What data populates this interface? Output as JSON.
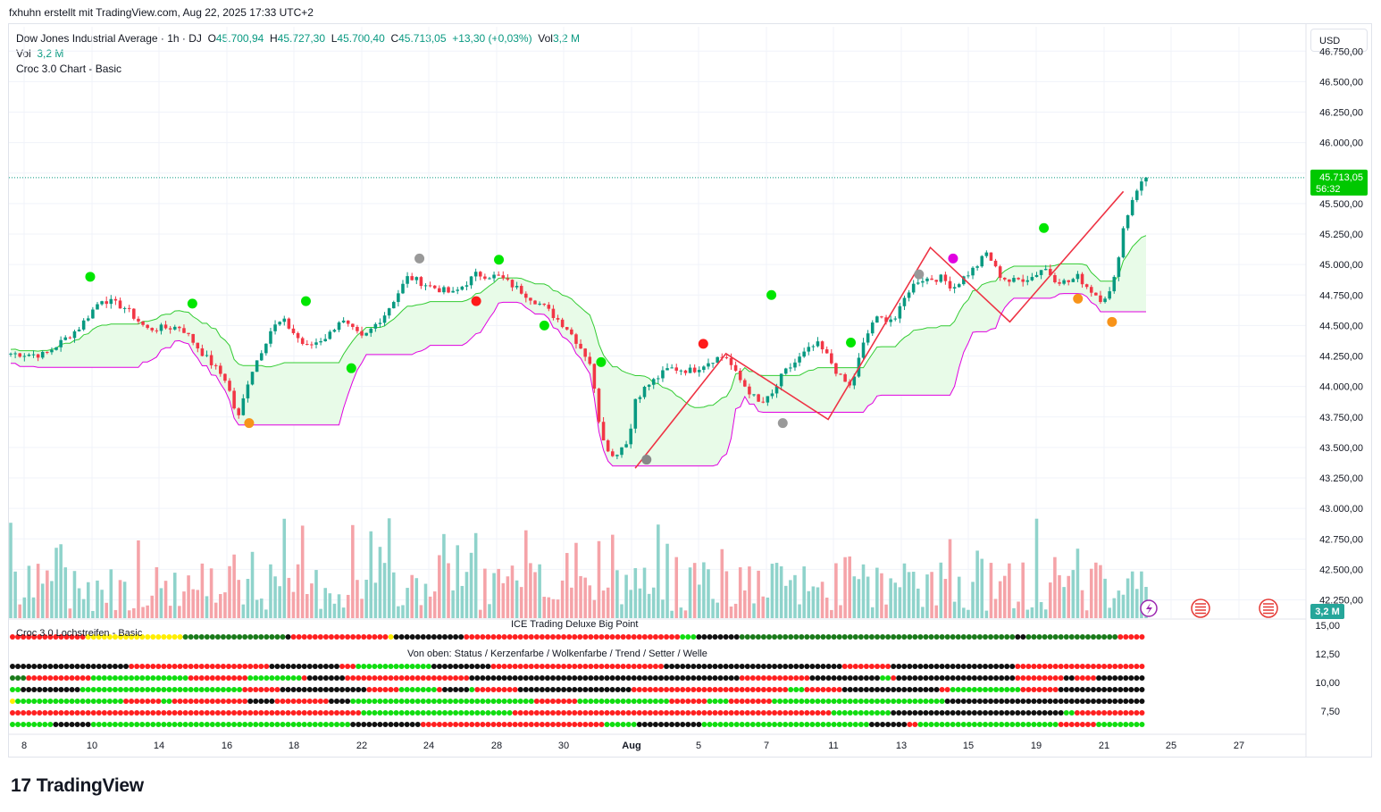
{
  "header": {
    "attribution": "fxhuhn erstellt mit TradingView.com, Aug 22, 2025 17:33 UTC+2"
  },
  "legend": {
    "symbol": "Dow Jones Industrial Average · 1h · DJ",
    "open_label": "O",
    "open": "45.700,94",
    "high_label": "H",
    "high": "45.727,30",
    "low_label": "L",
    "low": "45.700,40",
    "close_label": "C",
    "close": "45.713,05",
    "change": "+13,30 (+0,03%)",
    "vol_label": "Vol",
    "vol": "3,2 M",
    "line2_label": "Vol",
    "line2_value": "3,2 M",
    "line3": "Croc 3.0 Chart - Basic"
  },
  "currency_button": "USD",
  "price_label": {
    "value": "45.713,05",
    "countdown": "56:32"
  },
  "volume_badge": "3,2 M",
  "indicator1": {
    "title": "ICE Trading Deluxe Big Point",
    "sub": "Croc 3.0 Lochstreifen - Basic"
  },
  "indicator2": {
    "title": "Von oben: Status / Kerzenfarbe / Wolkenfarbe / Trend / Setter / Welle"
  },
  "footer": {
    "brand": "TradingView"
  },
  "colors": {
    "up": "#089981",
    "down": "#f23645",
    "green_dot": "#00e600",
    "red_dot": "#ff1a1a",
    "magenta": "#e000e0",
    "cloud": "#e8fbe8",
    "line_red": "#ee3344"
  },
  "chart_data": {
    "type": "candlestick",
    "title": "Dow Jones Industrial Average · 1h · DJ",
    "y_ticks": [
      "46.750,00",
      "46.500,00",
      "46.250,00",
      "46.000,00",
      "45.750,00",
      "45.500,00",
      "45.250,00",
      "45.000,00",
      "44.750,00",
      "44.500,00",
      "44.250,00",
      "44.000,00",
      "43.750,00",
      "43.500,00",
      "43.250,00",
      "43.000,00",
      "42.750,00",
      "42.500,00",
      "42.250,00"
    ],
    "ylim": [
      42100,
      46950
    ],
    "indicator_y_ticks": [
      "15,00",
      "12,50",
      "10,00",
      "7,50"
    ],
    "x_ticks": [
      "8",
      "10",
      "14",
      "16",
      "18",
      "22",
      "24",
      "28",
      "30",
      "Aug",
      "5",
      "7",
      "11",
      "13",
      "15",
      "19",
      "21",
      "25",
      "27"
    ],
    "close_path": [
      [
        0,
        44270
      ],
      [
        0.03,
        44260
      ],
      [
        0.06,
        44480
      ],
      [
        0.08,
        44720
      ],
      [
        0.1,
        44650
      ],
      [
        0.12,
        44470
      ],
      [
        0.15,
        44490
      ],
      [
        0.17,
        44260
      ],
      [
        0.19,
        44050
      ],
      [
        0.2,
        43720
      ],
      [
        0.21,
        44080
      ],
      [
        0.23,
        44480
      ],
      [
        0.24,
        44540
      ],
      [
        0.26,
        44320
      ],
      [
        0.28,
        44420
      ],
      [
        0.29,
        44550
      ],
      [
        0.31,
        44390
      ],
      [
        0.33,
        44600
      ],
      [
        0.35,
        44900
      ],
      [
        0.37,
        44820
      ],
      [
        0.39,
        44760
      ],
      [
        0.41,
        44920
      ],
      [
        0.43,
        44900
      ],
      [
        0.45,
        44780
      ],
      [
        0.47,
        44650
      ],
      [
        0.49,
        44480
      ],
      [
        0.5,
        44350
      ],
      [
        0.51,
        44200
      ],
      [
        0.52,
        43620
      ],
      [
        0.53,
        43420
      ],
      [
        0.545,
        43580
      ],
      [
        0.55,
        43900
      ],
      [
        0.56,
        44000
      ],
      [
        0.58,
        44150
      ],
      [
        0.6,
        44130
      ],
      [
        0.62,
        44230
      ],
      [
        0.63,
        44250
      ],
      [
        0.64,
        44080
      ],
      [
        0.66,
        43850
      ],
      [
        0.67,
        43920
      ],
      [
        0.68,
        44100
      ],
      [
        0.7,
        44280
      ],
      [
        0.71,
        44350
      ],
      [
        0.72,
        44240
      ],
      [
        0.73,
        44080
      ],
      [
        0.74,
        43990
      ],
      [
        0.75,
        44320
      ],
      [
        0.76,
        44550
      ],
      [
        0.78,
        44560
      ],
      [
        0.79,
        44780
      ],
      [
        0.8,
        44880
      ],
      [
        0.82,
        44890
      ],
      [
        0.83,
        44810
      ],
      [
        0.84,
        44900
      ],
      [
        0.85,
        44980
      ],
      [
        0.86,
        45100
      ],
      [
        0.87,
        44920
      ],
      [
        0.88,
        44860
      ],
      [
        0.9,
        44900
      ],
      [
        0.91,
        44980
      ],
      [
        0.92,
        44880
      ],
      [
        0.93,
        44850
      ],
      [
        0.94,
        44900
      ],
      [
        0.95,
        44800
      ],
      [
        0.96,
        44720
      ],
      [
        0.97,
        44780
      ],
      [
        0.98,
        45300
      ],
      [
        0.99,
        45600
      ],
      [
        1.0,
        45713
      ]
    ],
    "zigzag": [
      [
        0.55,
        43330
      ],
      [
        0.63,
        44270
      ],
      [
        0.72,
        43730
      ],
      [
        0.81,
        45140
      ],
      [
        0.88,
        44530
      ],
      [
        0.98,
        45600
      ]
    ],
    "last_price": 45713.05,
    "volume_last": "3,2 M"
  }
}
